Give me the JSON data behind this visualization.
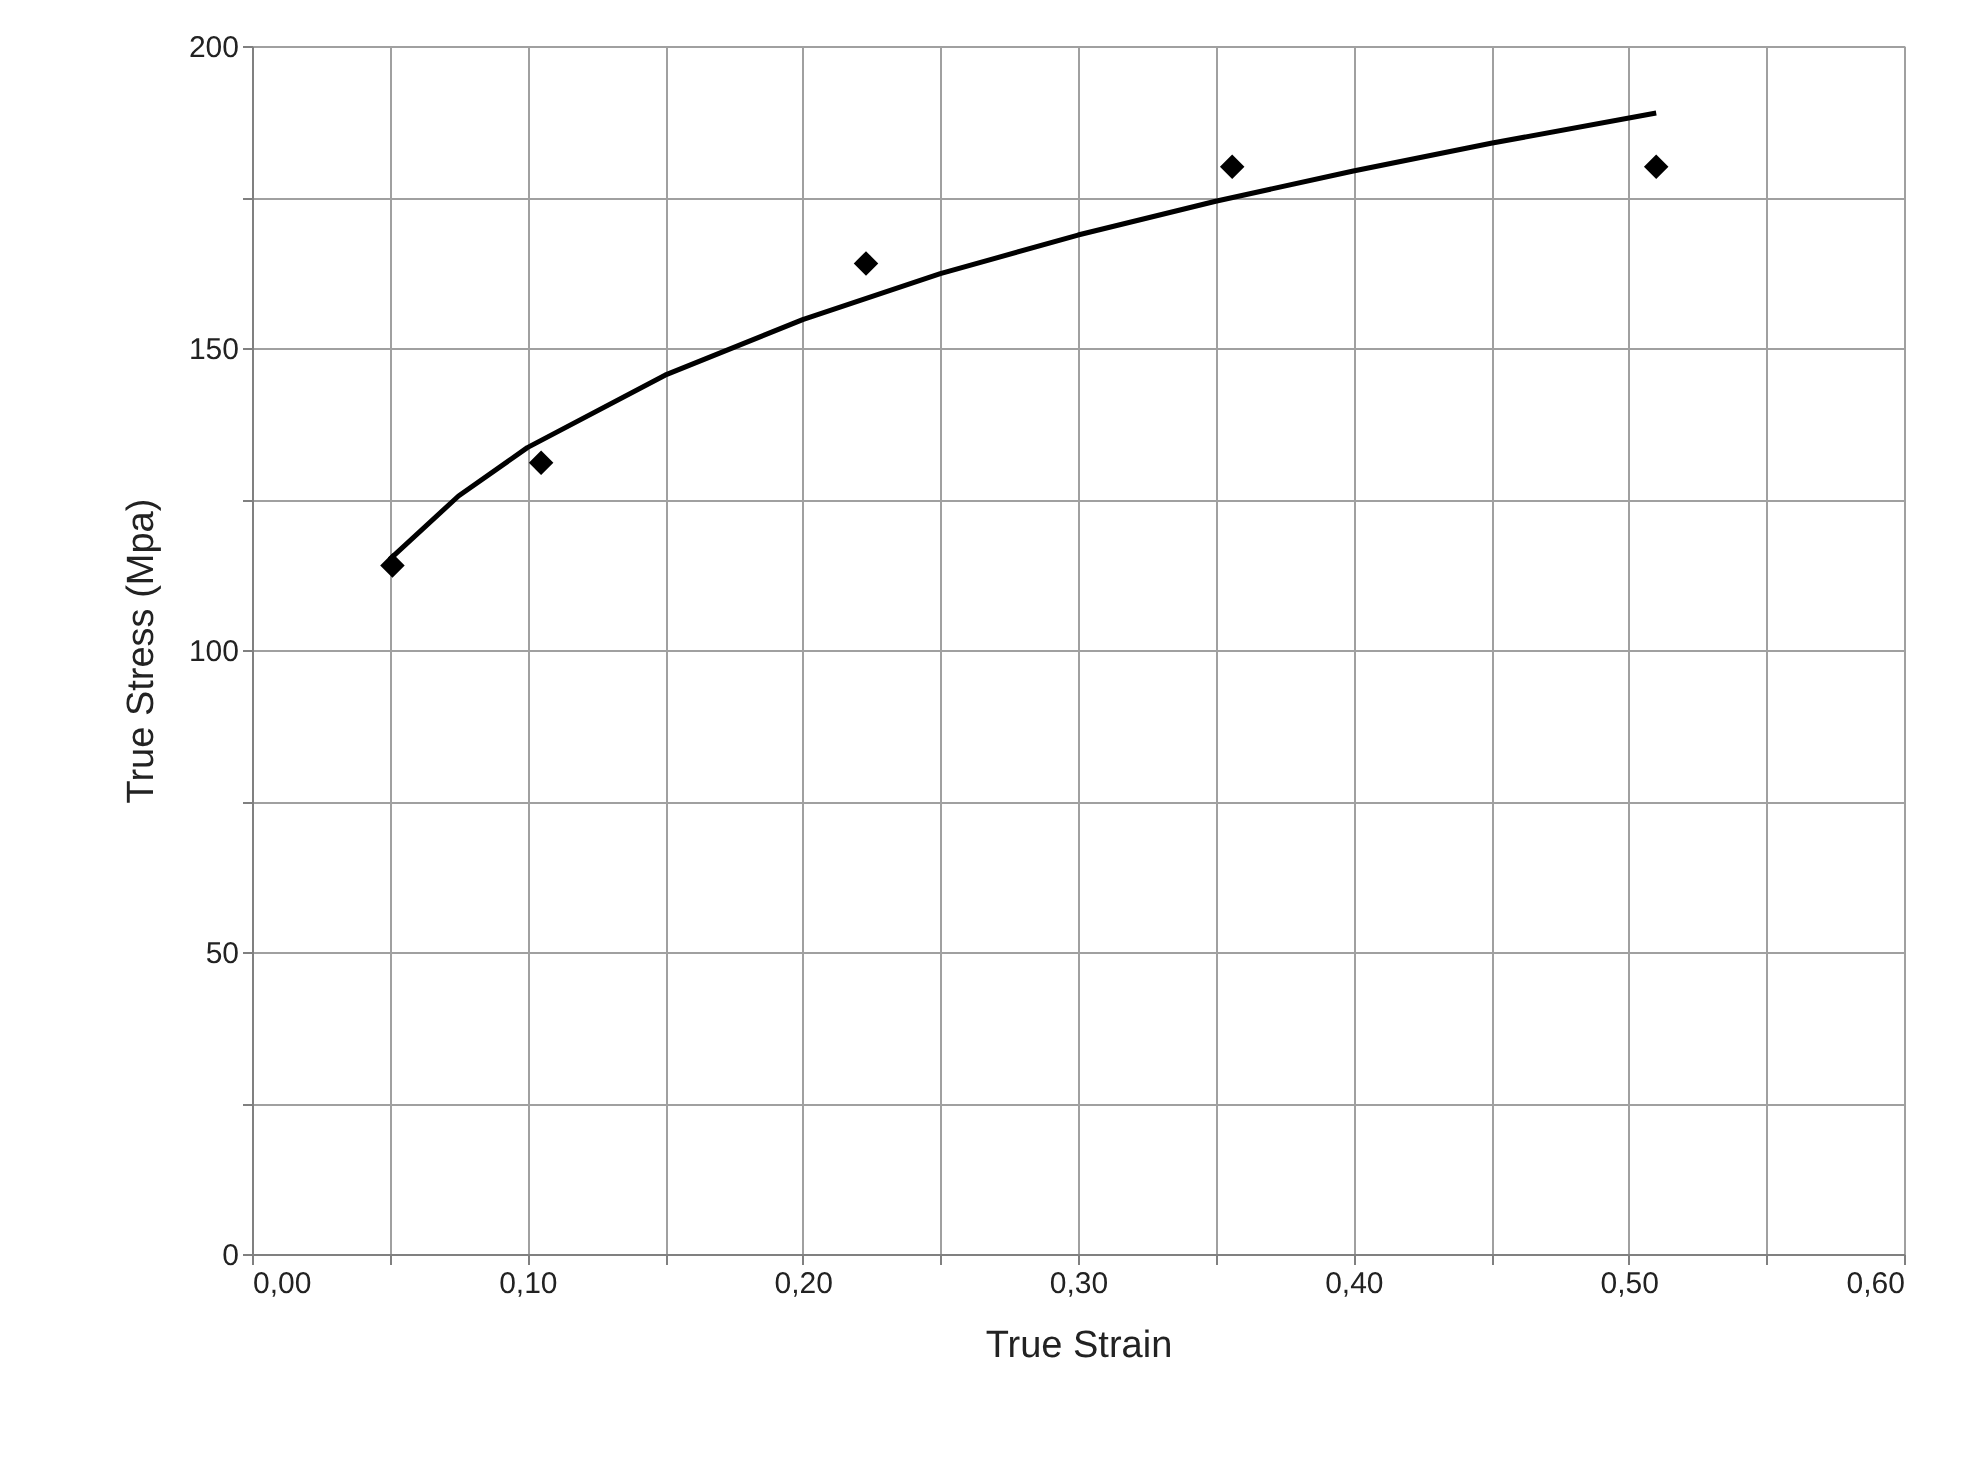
{
  "chart_data": {
    "type": "scatter",
    "xlabel": "True Strain",
    "ylabel": "True Stress (Mpa)",
    "series": [
      {
        "type": "scatter",
        "color": "#000000",
        "marker": "diamond",
        "x": [
          0.051,
          0.105,
          0.223,
          0.356,
          0.51
        ],
        "values": [
          114,
          131,
          164,
          180,
          180
        ]
      },
      {
        "type": "line",
        "color": "#000000",
        "marker": "none",
        "line_style": "solid",
        "x": [
          0.05,
          0.075,
          0.1,
          0.15,
          0.2,
          0.25,
          0.3,
          0.35,
          0.4,
          0.45,
          0.51
        ],
        "values": [
          115,
          125.5,
          133.5,
          145.5,
          154.7,
          162.3,
          168.7,
          174.3,
          179.3,
          183.9,
          188.9
        ]
      }
    ],
    "xlim": [
      0,
      0.6
    ],
    "xticks": [
      {
        "value": 0,
        "label": "0,00"
      },
      {
        "value": 0.05,
        "label": null
      },
      {
        "value": 0.1,
        "label": "0,10"
      },
      {
        "value": 0.15,
        "label": null
      },
      {
        "value": 0.2,
        "label": "0,20"
      },
      {
        "value": 0.25,
        "label": null
      },
      {
        "value": 0.3,
        "label": "0,30"
      },
      {
        "value": 0.35,
        "label": null
      },
      {
        "value": 0.4,
        "label": "0,40"
      },
      {
        "value": 0.45,
        "label": null
      },
      {
        "value": 0.5,
        "label": "0,50"
      },
      {
        "value": 0.55,
        "label": null
      },
      {
        "value": 0.6,
        "label": "0,60"
      }
    ],
    "ylim": [
      0,
      200
    ],
    "yticks": [
      0,
      {
        "value": 25,
        "label": null
      },
      50,
      {
        "value": 75,
        "label": null
      },
      100,
      {
        "value": 125,
        "label": null
      },
      150,
      {
        "value": 175,
        "label": null
      },
      200
    ],
    "grid": true
  }
}
